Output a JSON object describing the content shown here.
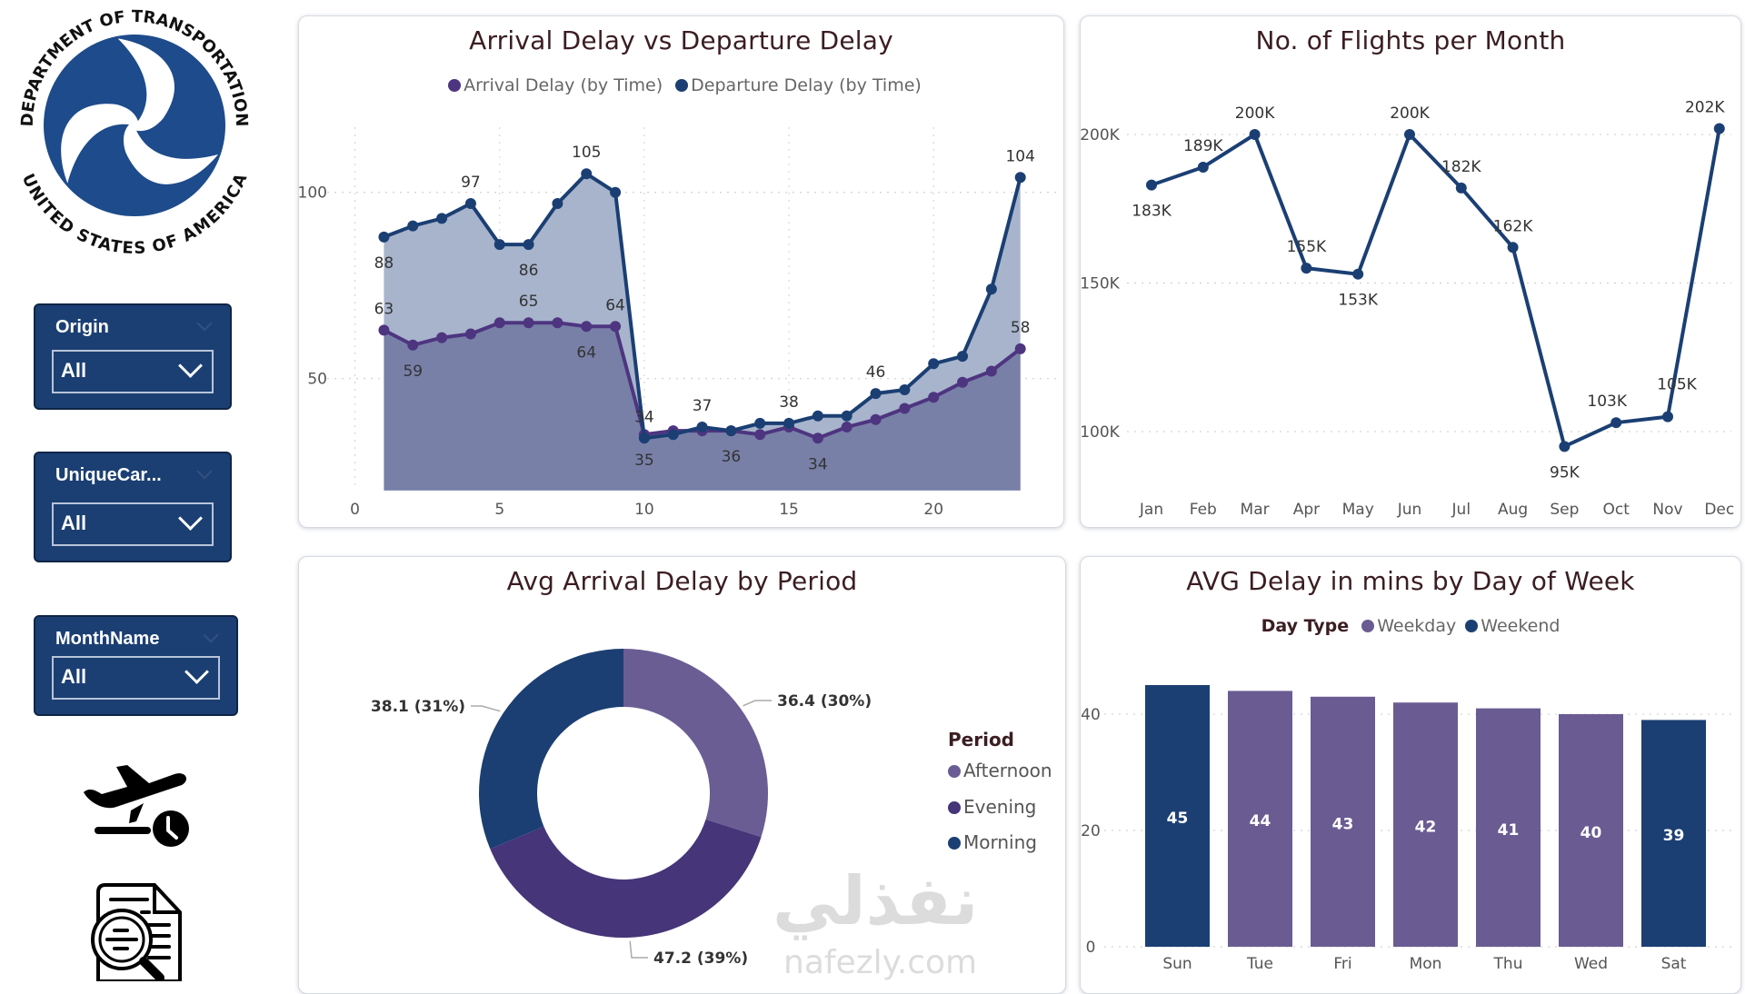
{
  "logo": {
    "top_text": "DEPARTMENT OF TRANSPORTATION",
    "bottom_text": "UNITED STATES OF AMERICA"
  },
  "slicers": [
    {
      "label": "Origin",
      "value": "All"
    },
    {
      "label": "UniqueCar...",
      "value": "All"
    },
    {
      "label": "MonthName",
      "value": "All"
    }
  ],
  "icons": [
    "airplane-departure-clock-icon",
    "document-search-icon"
  ],
  "colors": {
    "navy": "#1b3f73",
    "purple": "#4e3580",
    "afternoon": "#6a5d94",
    "evening": "#463578",
    "weekday": "#6a5c92",
    "dep_area": "#a7b4cc",
    "arr_area": "#7880a8"
  },
  "watermark": {
    "arabic": "نفذلي",
    "latin": "nafezly.com"
  },
  "chart_data": [
    {
      "type": "area",
      "title": "Arrival Delay vs Departure Delay",
      "x": [
        1,
        2,
        3,
        4,
        5,
        6,
        7,
        8,
        9,
        10,
        11,
        12,
        13,
        14,
        15,
        16,
        17,
        18,
        19,
        20,
        21,
        22,
        23
      ],
      "xticks": [
        "0",
        "5",
        "10",
        "15",
        "20"
      ],
      "yticks": [
        "50",
        "100"
      ],
      "xlim": [
        0,
        24
      ],
      "ylim": [
        20,
        115
      ],
      "grid": true,
      "legend": "top",
      "series": [
        {
          "name": "Departure Delay (by Time)",
          "values": [
            88,
            91,
            93,
            97,
            86,
            86,
            97,
            105,
            100,
            34,
            35,
            37,
            36,
            38,
            38,
            40,
            40,
            46,
            47,
            54,
            56,
            74,
            104
          ],
          "labeled": [
            1,
            4,
            6,
            8,
            10,
            12,
            15,
            18,
            23
          ]
        },
        {
          "name": "Arrival Delay (by Time)",
          "values": [
            63,
            59,
            61,
            62,
            65,
            65,
            65,
            64,
            64,
            35,
            36,
            36,
            36,
            35,
            37,
            34,
            37,
            39,
            42,
            45,
            49,
            52,
            58
          ],
          "labeled": [
            1,
            2,
            6,
            8,
            9,
            10,
            13,
            16,
            23
          ]
        }
      ]
    },
    {
      "type": "line",
      "title": "No. of Flights per Month",
      "categories": [
        "Jan",
        "Feb",
        "Mar",
        "Apr",
        "May",
        "Jun",
        "Jul",
        "Aug",
        "Sep",
        "Oct",
        "Nov",
        "Dec"
      ],
      "values": [
        183000,
        189000,
        200000,
        155000,
        153000,
        200000,
        182000,
        162000,
        95000,
        103000,
        105000,
        202000
      ],
      "labels": [
        "183K",
        "189K",
        "200K",
        "155K",
        "153K",
        "200K",
        "182K",
        "162K",
        "95K",
        "103K",
        "105K",
        "202K"
      ],
      "yticks": [
        "100K",
        "150K",
        "200K"
      ],
      "ylim": [
        80000,
        215000
      ],
      "grid": true
    },
    {
      "type": "pie",
      "title": "Avg Arrival Delay by Period",
      "legend_title": "Period",
      "legend": "right",
      "slices": [
        {
          "name": "Afternoon",
          "value": 36.4,
          "label": "36.4 (30%)"
        },
        {
          "name": "Evening",
          "value": 47.2,
          "label": "47.2 (39%)"
        },
        {
          "name": "Morning",
          "value": 38.1,
          "label": "38.1 (31%)"
        }
      ]
    },
    {
      "type": "bar",
      "title": "AVG Delay in mins by Day of Week",
      "legend_title": "Day Type",
      "legend": "top",
      "legend_items": [
        "Weekday",
        "Weekend"
      ],
      "categories": [
        "Sun",
        "Tue",
        "Fri",
        "Mon",
        "Thu",
        "Wed",
        "Sat"
      ],
      "values": [
        45,
        44,
        43,
        42,
        41,
        40,
        39
      ],
      "day_type": [
        "Weekend",
        "Weekday",
        "Weekday",
        "Weekday",
        "Weekday",
        "Weekday",
        "Weekend"
      ],
      "yticks": [
        "0",
        "20",
        "40"
      ],
      "ylim": [
        0,
        48
      ],
      "grid": true
    }
  ]
}
